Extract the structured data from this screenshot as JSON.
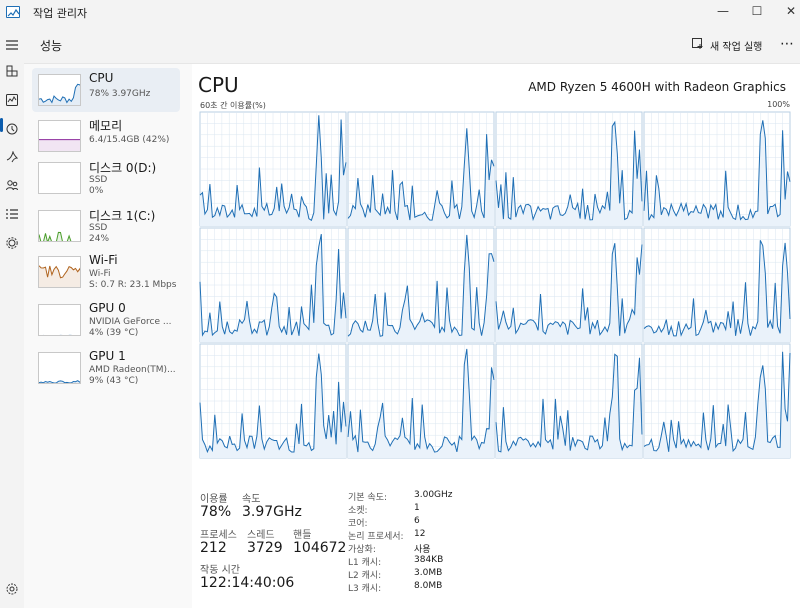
{
  "window": {
    "title": "작업 관리자",
    "icon": "task-manager-icon",
    "controls": {
      "minimize": "—",
      "maximize": "☐",
      "close": "✕"
    }
  },
  "rail": {
    "icons": [
      "hamburger-menu-icon",
      "processes-icon",
      "performance-icon",
      "app-history-icon",
      "startup-apps-icon",
      "users-icon",
      "details-icon",
      "services-icon",
      "settings-icon"
    ]
  },
  "header": {
    "page_title": "성능",
    "run_task_label": "새 작업 실행",
    "more": "⋯"
  },
  "devices": [
    {
      "name": "CPU",
      "sub1": "78% 3.97GHz",
      "sub2": "",
      "color": "#1f6fb5",
      "kind": "cpu"
    },
    {
      "name": "메모리",
      "sub1": "6.4/15.4GB (42%)",
      "sub2": "",
      "color": "#8b2a9b",
      "kind": "mem"
    },
    {
      "name": "디스크 0(D:)",
      "sub1": "SSD",
      "sub2": "0%",
      "color": "#4a9d2b",
      "kind": "disk0"
    },
    {
      "name": "디스크 1(C:)",
      "sub1": "SSD",
      "sub2": "24%",
      "color": "#4a9d2b",
      "kind": "disk1"
    },
    {
      "name": "Wi-Fi",
      "sub1": "Wi-Fi",
      "sub2": "S: 0.7 R: 23.1 Mbps",
      "color": "#b0641f",
      "kind": "wifi"
    },
    {
      "name": "GPU 0",
      "sub1": "NVIDIA GeForce ...",
      "sub2": "4% (39 °C)",
      "color": "#1f6fb5",
      "kind": "gpu0"
    },
    {
      "name": "GPU 1",
      "sub1": "AMD Radeon(TM)...",
      "sub2": "9% (43 °C)",
      "color": "#1f6fb5",
      "kind": "gpu1"
    }
  ],
  "cpu": {
    "title": "CPU",
    "model": "AMD Ryzen 5 4600H with Radeon Graphics",
    "util_caption": "60초 간 이용률(%)",
    "util_max": "100%",
    "line_color": "#1f6fb5",
    "fill_color": "#eaf2fa",
    "grid_color": "#dbe6f0",
    "frame_color": "#b9cfe3",
    "logical_processors": 12
  },
  "stats": {
    "usage_label": "이용률",
    "usage_value": "78%",
    "speed_label": "속도",
    "speed_value": "3.97GHz",
    "process_label": "프로세스",
    "process_value": "212",
    "thread_label": "스레드",
    "thread_value": "3729",
    "handle_label": "핸들",
    "handle_value": "104672",
    "uptime_label": "작동 시간",
    "uptime_value": "122:14:40:06"
  },
  "specs": [
    {
      "label": "기본 속도:",
      "value": "3.00GHz"
    },
    {
      "label": "소켓:",
      "value": "1"
    },
    {
      "label": "코어:",
      "value": "6"
    },
    {
      "label": "논리 프로세서:",
      "value": "12"
    },
    {
      "label": "가상화:",
      "value": "사용"
    },
    {
      "label": "L1 캐시:",
      "value": "384KB"
    },
    {
      "label": "L2 캐시:",
      "value": "3.0MB"
    },
    {
      "label": "L3 캐시:",
      "value": "8.0MB"
    }
  ]
}
